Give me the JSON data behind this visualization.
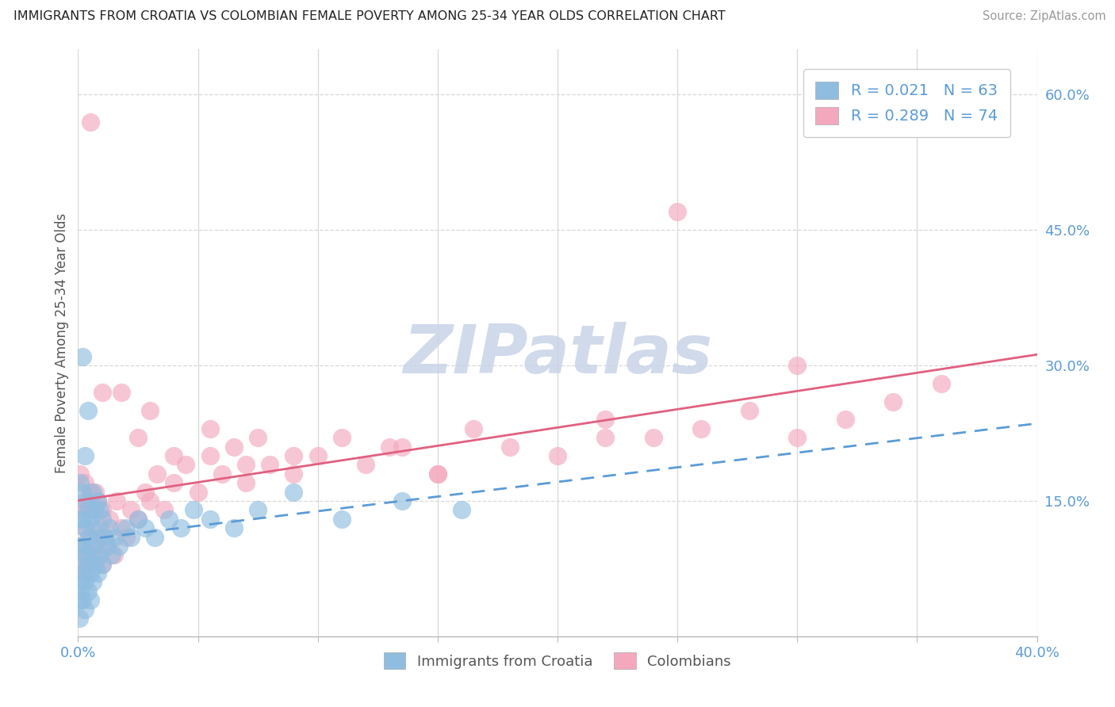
{
  "title": "IMMIGRANTS FROM CROATIA VS COLOMBIAN FEMALE POVERTY AMONG 25-34 YEAR OLDS CORRELATION CHART",
  "source": "Source: ZipAtlas.com",
  "ylabel": "Female Poverty Among 25-34 Year Olds",
  "xlim": [
    0.0,
    0.4
  ],
  "ylim": [
    0.0,
    0.65
  ],
  "bg_color": "#ffffff",
  "grid_color": "#d8d8d8",
  "watermark_text": "ZIPatlas",
  "watermark_color": "#c8d4e8",
  "series": [
    {
      "name": "Immigrants from Croatia",
      "color": "#8fbde0",
      "R": 0.021,
      "N": 63,
      "trend_color": "#5b9bd5",
      "trend_style": "dashed"
    },
    {
      "name": "Colombians",
      "color": "#f4a8be",
      "R": 0.289,
      "N": 74,
      "trend_color": "#e06080",
      "trend_style": "solid"
    }
  ],
  "croatia_x": [
    0.0005,
    0.0005,
    0.001,
    0.001,
    0.001,
    0.001,
    0.001,
    0.0015,
    0.002,
    0.002,
    0.002,
    0.002,
    0.002,
    0.003,
    0.003,
    0.003,
    0.003,
    0.003,
    0.003,
    0.004,
    0.004,
    0.004,
    0.004,
    0.005,
    0.005,
    0.005,
    0.005,
    0.006,
    0.006,
    0.006,
    0.006,
    0.007,
    0.007,
    0.008,
    0.008,
    0.008,
    0.009,
    0.009,
    0.01,
    0.01,
    0.011,
    0.012,
    0.013,
    0.014,
    0.015,
    0.017,
    0.02,
    0.022,
    0.025,
    0.028,
    0.032,
    0.038,
    0.043,
    0.048,
    0.055,
    0.065,
    0.075,
    0.09,
    0.11,
    0.135,
    0.16,
    0.002,
    0.004
  ],
  "croatia_y": [
    0.02,
    0.04,
    0.05,
    0.08,
    0.1,
    0.13,
    0.17,
    0.06,
    0.04,
    0.07,
    0.1,
    0.13,
    0.16,
    0.03,
    0.06,
    0.09,
    0.12,
    0.15,
    0.2,
    0.05,
    0.08,
    0.11,
    0.14,
    0.04,
    0.07,
    0.1,
    0.13,
    0.06,
    0.09,
    0.12,
    0.16,
    0.08,
    0.14,
    0.07,
    0.11,
    0.15,
    0.09,
    0.14,
    0.08,
    0.13,
    0.11,
    0.1,
    0.12,
    0.09,
    0.11,
    0.1,
    0.12,
    0.11,
    0.13,
    0.12,
    0.11,
    0.13,
    0.12,
    0.14,
    0.13,
    0.12,
    0.14,
    0.16,
    0.13,
    0.15,
    0.14,
    0.31,
    0.25
  ],
  "colombia_x": [
    0.0005,
    0.001,
    0.001,
    0.002,
    0.002,
    0.003,
    0.003,
    0.003,
    0.004,
    0.004,
    0.005,
    0.005,
    0.006,
    0.006,
    0.007,
    0.007,
    0.008,
    0.008,
    0.009,
    0.01,
    0.01,
    0.011,
    0.012,
    0.013,
    0.015,
    0.016,
    0.018,
    0.02,
    0.022,
    0.025,
    0.028,
    0.03,
    0.033,
    0.036,
    0.04,
    0.045,
    0.05,
    0.055,
    0.06,
    0.065,
    0.07,
    0.075,
    0.08,
    0.09,
    0.1,
    0.11,
    0.12,
    0.135,
    0.15,
    0.165,
    0.18,
    0.2,
    0.22,
    0.24,
    0.26,
    0.28,
    0.3,
    0.32,
    0.34,
    0.36,
    0.018,
    0.03,
    0.055,
    0.09,
    0.15,
    0.22,
    0.3,
    0.005,
    0.01,
    0.025,
    0.04,
    0.07,
    0.13,
    0.25
  ],
  "colombia_y": [
    0.14,
    0.1,
    0.18,
    0.08,
    0.14,
    0.07,
    0.12,
    0.17,
    0.09,
    0.15,
    0.11,
    0.16,
    0.08,
    0.14,
    0.1,
    0.16,
    0.09,
    0.15,
    0.12,
    0.08,
    0.14,
    0.11,
    0.1,
    0.13,
    0.09,
    0.15,
    0.12,
    0.11,
    0.14,
    0.13,
    0.16,
    0.15,
    0.18,
    0.14,
    0.17,
    0.19,
    0.16,
    0.2,
    0.18,
    0.21,
    0.17,
    0.22,
    0.19,
    0.18,
    0.2,
    0.22,
    0.19,
    0.21,
    0.18,
    0.23,
    0.21,
    0.2,
    0.24,
    0.22,
    0.23,
    0.25,
    0.22,
    0.24,
    0.26,
    0.28,
    0.27,
    0.25,
    0.23,
    0.2,
    0.18,
    0.22,
    0.3,
    0.57,
    0.27,
    0.22,
    0.2,
    0.19,
    0.21,
    0.47
  ]
}
